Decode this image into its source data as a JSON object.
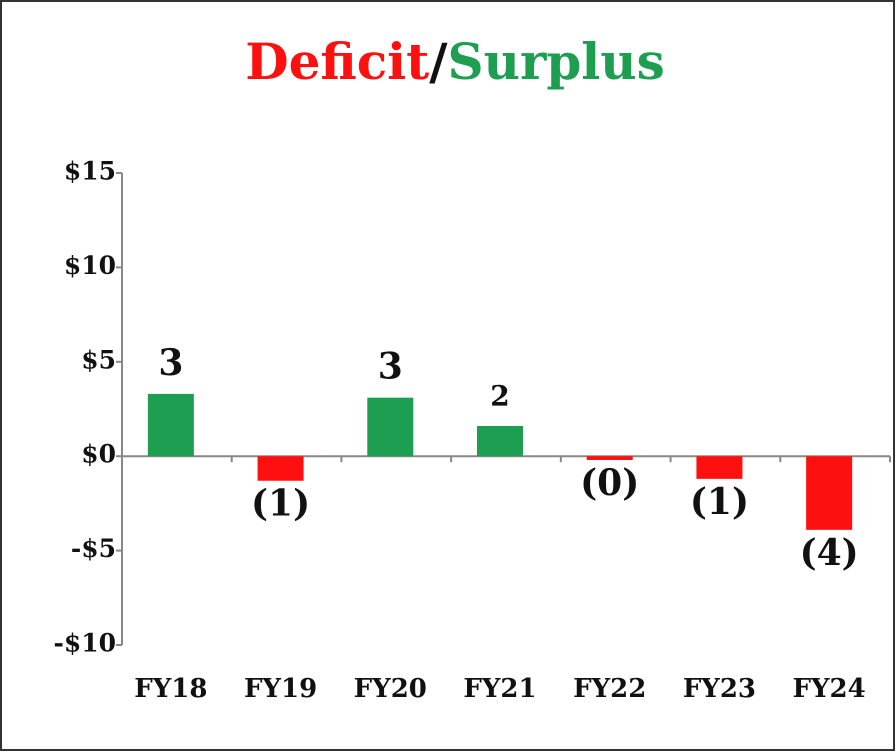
{
  "chart_data": {
    "type": "bar",
    "title_parts": [
      "Deficit",
      "/",
      "Surplus"
    ],
    "categories": [
      "FY18",
      "FY19",
      "FY20",
      "FY21",
      "FY22",
      "FY23",
      "FY24"
    ],
    "values": [
      3.3,
      -1.3,
      3.1,
      1.6,
      -0.2,
      -1.2,
      -3.9
    ],
    "value_labels": [
      "3",
      "(1)",
      "3",
      "2",
      "(0)",
      "(1)",
      "(4)"
    ],
    "colors": {
      "positive": "#1e9e50",
      "negative": "#ff1010"
    },
    "ylim": [
      -10,
      15
    ],
    "yticks": [
      {
        "value": -10,
        "label": "-$10"
      },
      {
        "value": -5,
        "label": "-$5"
      },
      {
        "value": 0,
        "label": "$0"
      },
      {
        "value": 5,
        "label": "$5"
      },
      {
        "value": 10,
        "label": "$10"
      },
      {
        "value": 15,
        "label": "$15"
      }
    ],
    "grid": false
  }
}
